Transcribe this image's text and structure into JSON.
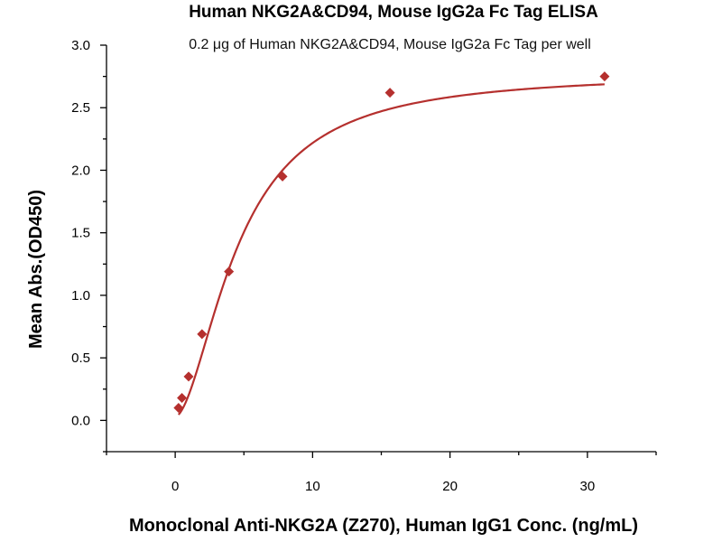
{
  "chart_data": {
    "type": "scatter",
    "title": "Human NKG2A&CD94, Mouse IgG2a Fc Tag ELISA",
    "subtitle": "0.2 μg of Human NKG2A&CD94, Mouse IgG2a Fc Tag per well",
    "xlabel": "Monoclonal Anti-NKG2A (Z270), Human IgG1 Conc. (ng/mL)",
    "ylabel": "Mean Abs.(OD450)",
    "xlim": [
      -5,
      35
    ],
    "ylim": [
      -0.25,
      3.0
    ],
    "x_major_ticks": [
      0,
      10,
      20,
      30
    ],
    "x_minor_ticks": [
      -5,
      5,
      15,
      25,
      35
    ],
    "y_major_ticks": [
      0.0,
      0.5,
      1.0,
      1.5,
      2.0,
      2.5,
      3.0
    ],
    "y_minor_ticks": [
      -0.25,
      0.25,
      0.75,
      1.25,
      1.75,
      2.25,
      2.75
    ],
    "x_tick_labels": [
      "0",
      "10",
      "20",
      "30"
    ],
    "y_tick_labels": [
      "0.0",
      "0.5",
      "1.0",
      "1.5",
      "2.0",
      "2.5",
      "3.0"
    ],
    "grid": false,
    "series": [
      {
        "marker": "diamond",
        "color": "#b5302e",
        "x": [
          0.244,
          0.488,
          0.977,
          1.95,
          3.91,
          7.81,
          15.63,
          31.25
        ],
        "y": [
          0.1,
          0.18,
          0.35,
          0.69,
          1.19,
          1.95,
          2.62,
          2.75
        ]
      }
    ],
    "fit_curve": {
      "type": "4PL",
      "color": "#b5302e",
      "bottom": 0.03,
      "top": 2.78,
      "ec50": 4.6,
      "hill": 1.75
    }
  }
}
